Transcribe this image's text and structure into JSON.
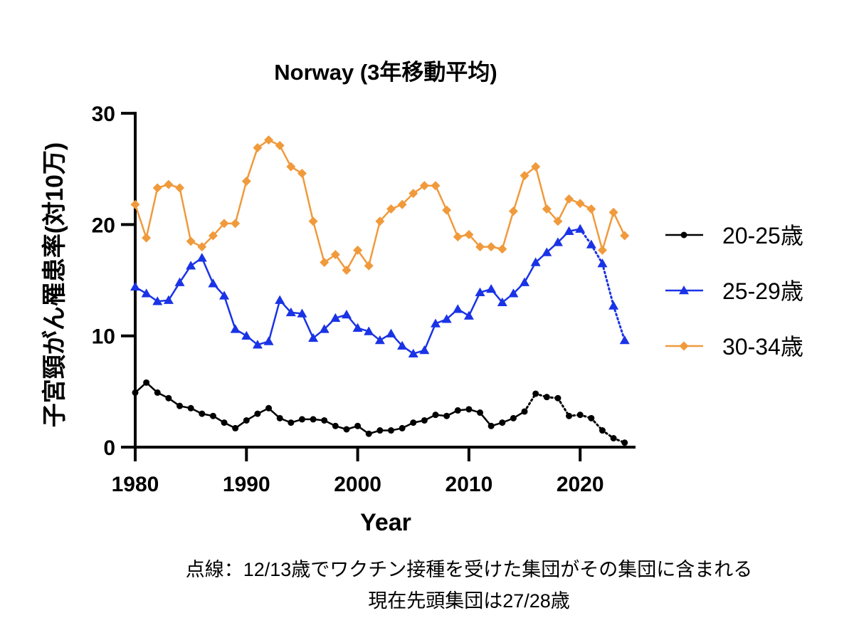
{
  "chart_data": {
    "type": "line",
    "title": "Norway (3年移動平均)",
    "xlabel": "Year",
    "ylabel": "子宮頸がん罹患率(対10万)",
    "xlim": [
      1980,
      2024.5
    ],
    "ylim": [
      0,
      30
    ],
    "xticks": [
      1980,
      1990,
      2000,
      2010,
      2020
    ],
    "yticks": [
      0,
      10,
      20,
      30
    ],
    "grid": false,
    "legend_position": "right",
    "x": [
      1980,
      1981,
      1982,
      1983,
      1984,
      1985,
      1986,
      1987,
      1988,
      1989,
      1990,
      1991,
      1992,
      1993,
      1994,
      1995,
      1996,
      1997,
      1998,
      1999,
      2000,
      2001,
      2002,
      2003,
      2004,
      2005,
      2006,
      2007,
      2008,
      2009,
      2010,
      2011,
      2012,
      2013,
      2014,
      2015,
      2016,
      2017,
      2018,
      2019,
      2020,
      2021,
      2022,
      2023,
      2024
    ],
    "series": [
      {
        "name": "20-25歳",
        "color": "#000000",
        "marker": "circle",
        "dotted_from": 2015,
        "values": [
          4.9,
          5.8,
          4.9,
          4.4,
          3.7,
          3.5,
          3.0,
          2.8,
          2.2,
          1.7,
          2.4,
          3.0,
          3.5,
          2.6,
          2.2,
          2.5,
          2.5,
          2.4,
          1.9,
          1.6,
          1.9,
          1.2,
          1.5,
          1.5,
          1.7,
          2.2,
          2.4,
          2.9,
          2.8,
          3.3,
          3.4,
          3.1,
          1.9,
          2.2,
          2.6,
          3.2,
          4.8,
          4.5,
          4.4,
          2.8,
          2.9,
          2.6,
          1.5,
          0.8,
          0.4
        ]
      },
      {
        "name": "25-29歳",
        "color": "#1a33e6",
        "marker": "triangle",
        "dotted_from": 2020,
        "values": [
          14.4,
          13.8,
          13.1,
          13.2,
          14.8,
          16.3,
          17.0,
          14.7,
          13.6,
          10.6,
          10.0,
          9.2,
          9.5,
          13.2,
          12.1,
          12.0,
          9.8,
          10.6,
          11.6,
          11.9,
          10.7,
          10.4,
          9.6,
          10.2,
          9.1,
          8.4,
          8.7,
          11.1,
          11.5,
          12.4,
          11.8,
          13.9,
          14.2,
          13.0,
          13.8,
          14.8,
          16.6,
          17.5,
          18.4,
          19.4,
          19.6,
          18.2,
          16.5,
          12.7,
          9.6
        ]
      },
      {
        "name": "30-34歳",
        "color": "#f09a3c",
        "marker": "diamond",
        "dotted_from": null,
        "values": [
          21.8,
          18.8,
          23.3,
          23.6,
          23.3,
          18.5,
          18.0,
          19.0,
          20.1,
          20.1,
          23.9,
          26.9,
          27.6,
          27.1,
          25.2,
          24.6,
          20.3,
          16.6,
          17.3,
          15.9,
          17.7,
          16.3,
          20.3,
          21.4,
          21.8,
          22.8,
          23.5,
          23.5,
          21.3,
          18.9,
          19.1,
          18.0,
          18.0,
          17.8,
          21.2,
          24.4,
          25.2,
          21.4,
          20.3,
          22.3,
          21.9,
          21.4,
          17.7,
          21.1,
          19.0
        ]
      }
    ],
    "annotations": [
      "点線：12/13歳でワクチン接種を受けた集団がその集団に含まれる",
      "現在先頭集団は27/28歳"
    ]
  }
}
